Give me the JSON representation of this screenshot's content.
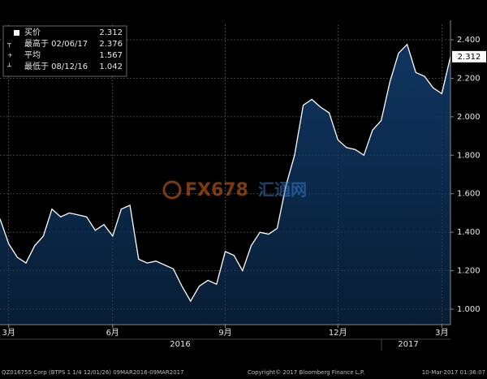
{
  "chart_data": {
    "type": "area",
    "series": [
      {
        "name": "买价",
        "color": "#ffffff",
        "fill": "#0f3560",
        "values": [
          1.47,
          1.34,
          1.27,
          1.24,
          1.33,
          1.38,
          1.52,
          1.48,
          1.5,
          1.49,
          1.48,
          1.41,
          1.44,
          1.38,
          1.52,
          1.54,
          1.26,
          1.24,
          1.25,
          1.23,
          1.21,
          1.12,
          1.042,
          1.12,
          1.15,
          1.13,
          1.3,
          1.28,
          1.2,
          1.33,
          1.4,
          1.39,
          1.42,
          1.64,
          1.8,
          2.06,
          2.09,
          2.05,
          2.02,
          1.88,
          1.84,
          1.83,
          1.8,
          1.93,
          1.98,
          2.18,
          2.33,
          2.376,
          2.23,
          2.21,
          2.15,
          2.12,
          2.312
        ]
      }
    ],
    "categories": [
      null,
      "3月",
      null,
      null,
      null,
      null,
      null,
      null,
      null,
      null,
      null,
      null,
      null,
      "6月",
      null,
      null,
      null,
      null,
      null,
      null,
      null,
      null,
      null,
      null,
      null,
      null,
      "9月",
      null,
      null,
      null,
      null,
      null,
      null,
      null,
      null,
      null,
      null,
      null,
      null,
      "12月",
      null,
      null,
      null,
      null,
      null,
      null,
      null,
      null,
      null,
      null,
      null,
      "3月",
      null
    ],
    "year_labels": [
      "2016",
      "2017"
    ],
    "ylim": [
      0.92,
      2.48
    ],
    "yticks": [
      {
        "value": 1.0,
        "label": "1.000"
      },
      {
        "value": 1.2,
        "label": "1.200"
      },
      {
        "value": 1.4,
        "label": "1.400"
      },
      {
        "value": 1.6,
        "label": "1.600"
      },
      {
        "value": 1.8,
        "label": "1.800"
      },
      {
        "value": 2.0,
        "label": "2.000"
      },
      {
        "value": 2.2,
        "label": "2.200"
      },
      {
        "value": 2.4,
        "label": "2.400"
      }
    ],
    "grid": true,
    "stats": [
      {
        "label": "买价",
        "value": 2.312
      },
      {
        "label": "最高于 02/06/17",
        "value": 2.376
      },
      {
        "label": "平均",
        "value": 1.567
      },
      {
        "label": "最低于 08/12/16",
        "value": 1.042
      }
    ],
    "watermark": [
      "FX678",
      "汇通网"
    ],
    "footer": [
      "QZ016755 Corp (BTPS 1 1/4 12/01/26)  09MAR2016-09MAR2017",
      "Copyright© 2017 Bloomberg Finance L.P.",
      "10-Mar-2017 01:36:07"
    ]
  }
}
